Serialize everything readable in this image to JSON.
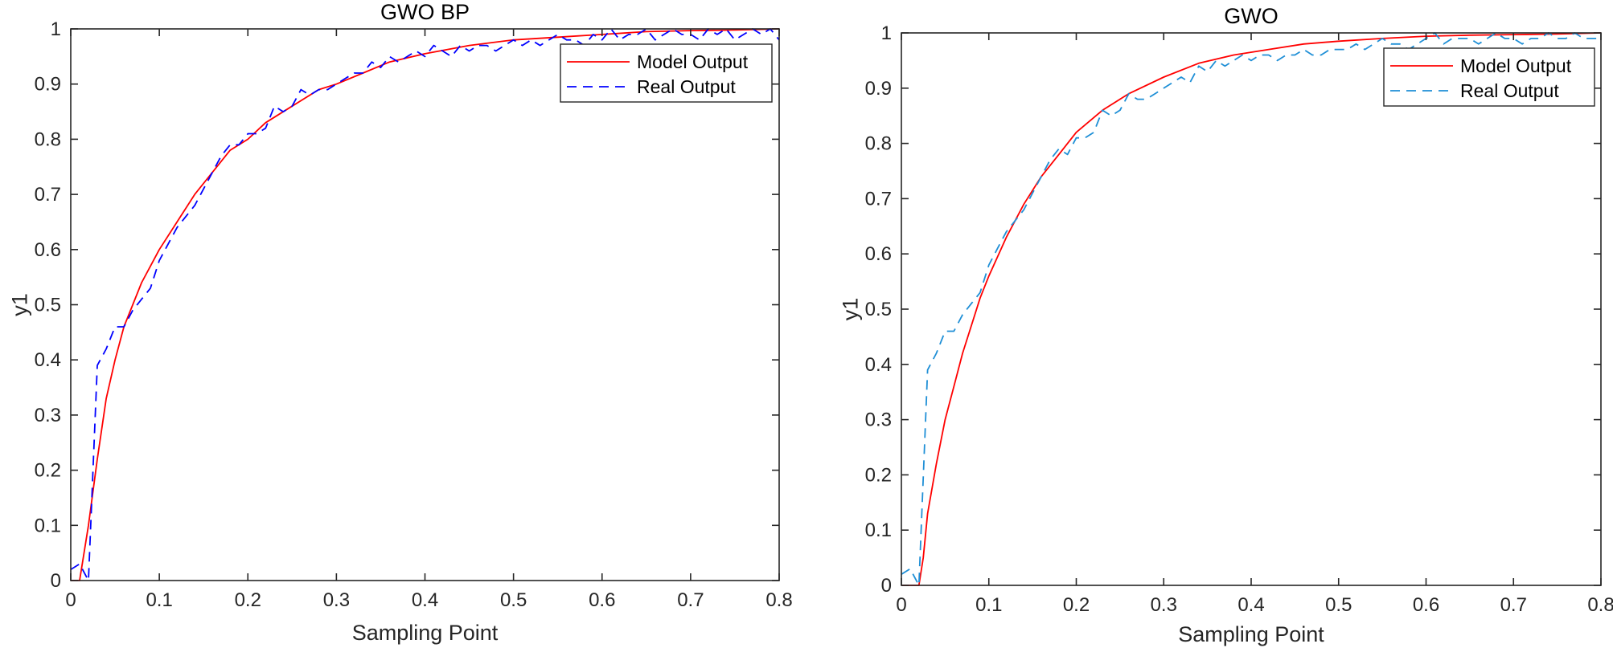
{
  "chart_data": [
    {
      "type": "line",
      "title": "GWO BP",
      "xlabel": "Sampling Point",
      "ylabel": "y1",
      "xlim": [
        0,
        0.8
      ],
      "ylim": [
        0,
        1
      ],
      "xticks": [
        0,
        0.1,
        0.2,
        0.3,
        0.4,
        0.5,
        0.6,
        0.7,
        0.8
      ],
      "xtick_labels": [
        "0",
        "0.1",
        "0.2",
        "0.3",
        "0.4",
        "0.5",
        "0.6",
        "0.7",
        "0.8"
      ],
      "yticks": [
        0,
        0.1,
        0.2,
        0.3,
        0.4,
        0.5,
        0.6,
        0.7,
        0.8,
        0.9,
        1
      ],
      "ytick_labels": [
        "0",
        "0.1",
        "0.2",
        "0.3",
        "0.4",
        "0.5",
        "0.6",
        "0.7",
        "0.8",
        "0.9",
        "1"
      ],
      "grid": false,
      "legend_position": "top-right",
      "series": [
        {
          "name": "Model Output",
          "color": "#ff0000",
          "dash": "solid",
          "x": [
            0,
            0.01,
            0.02,
            0.03,
            0.04,
            0.05,
            0.06,
            0.07,
            0.08,
            0.09,
            0.1,
            0.12,
            0.14,
            0.16,
            0.18,
            0.2,
            0.22,
            0.25,
            0.28,
            0.3,
            0.33,
            0.36,
            0.4,
            0.45,
            0.5,
            0.55,
            0.6,
            0.65,
            0.7,
            0.75,
            0.8
          ],
          "y": [
            0,
            0,
            0.1,
            0.22,
            0.33,
            0.4,
            0.46,
            0.5,
            0.54,
            0.57,
            0.6,
            0.65,
            0.7,
            0.74,
            0.78,
            0.8,
            0.83,
            0.86,
            0.89,
            0.9,
            0.92,
            0.94,
            0.955,
            0.97,
            0.98,
            0.985,
            0.99,
            0.995,
            0.997,
            0.998,
            1.0
          ]
        },
        {
          "name": "Real Output",
          "color": "#0000ff",
          "dash": "dashed",
          "x": [
            0,
            0.01,
            0.02,
            0.03,
            0.04,
            0.05,
            0.06,
            0.07,
            0.08,
            0.09,
            0.1,
            0.11,
            0.12,
            0.13,
            0.14,
            0.15,
            0.16,
            0.17,
            0.18,
            0.19,
            0.2,
            0.21,
            0.22,
            0.23,
            0.24,
            0.25,
            0.26,
            0.27,
            0.28,
            0.29,
            0.3,
            0.31,
            0.32,
            0.33,
            0.34,
            0.35,
            0.36,
            0.37,
            0.38,
            0.39,
            0.4,
            0.41,
            0.42,
            0.43,
            0.44,
            0.45,
            0.46,
            0.47,
            0.48,
            0.49,
            0.5,
            0.51,
            0.52,
            0.53,
            0.54,
            0.55,
            0.56,
            0.57,
            0.58,
            0.59,
            0.6,
            0.61,
            0.62,
            0.63,
            0.64,
            0.65,
            0.66,
            0.67,
            0.68,
            0.69,
            0.7,
            0.71,
            0.72,
            0.73,
            0.74,
            0.75,
            0.76,
            0.77,
            0.78,
            0.79,
            0.8
          ],
          "y": [
            0.02,
            0.03,
            0.0,
            0.39,
            0.42,
            0.46,
            0.46,
            0.49,
            0.51,
            0.53,
            0.58,
            0.61,
            0.64,
            0.66,
            0.68,
            0.71,
            0.74,
            0.77,
            0.79,
            0.79,
            0.81,
            0.81,
            0.82,
            0.86,
            0.85,
            0.86,
            0.89,
            0.88,
            0.89,
            0.89,
            0.9,
            0.91,
            0.92,
            0.92,
            0.94,
            0.93,
            0.95,
            0.94,
            0.95,
            0.96,
            0.95,
            0.97,
            0.96,
            0.95,
            0.97,
            0.96,
            0.97,
            0.97,
            0.96,
            0.97,
            0.98,
            0.97,
            0.98,
            0.97,
            0.98,
            0.99,
            0.98,
            0.98,
            0.97,
            0.99,
            0.98,
            1.0,
            0.98,
            0.99,
            0.99,
            1.0,
            0.98,
            0.99,
            1.0,
            0.99,
            0.99,
            0.98,
            1.0,
            0.99,
            1.0,
            0.98,
            0.99,
            1.0,
            0.99,
            1.0,
            0.98
          ]
        }
      ]
    },
    {
      "type": "line",
      "title": "GWO",
      "xlabel": "Sampling Point",
      "ylabel": "y1",
      "xlim": [
        0,
        0.8
      ],
      "ylim": [
        0,
        1
      ],
      "xticks": [
        0,
        0.1,
        0.2,
        0.3,
        0.4,
        0.5,
        0.6,
        0.7,
        0.8
      ],
      "xtick_labels": [
        "0",
        "0.1",
        "0.2",
        "0.3",
        "0.4",
        "0.5",
        "0.6",
        "0.7",
        "0.8"
      ],
      "yticks": [
        0,
        0.1,
        0.2,
        0.3,
        0.4,
        0.5,
        0.6,
        0.7,
        0.8,
        0.9,
        1
      ],
      "ytick_labels": [
        "0",
        "0.1",
        "0.2",
        "0.3",
        "0.4",
        "0.5",
        "0.6",
        "0.7",
        "0.8",
        "0.9",
        "1"
      ],
      "grid": false,
      "legend_position": "top-right",
      "series": [
        {
          "name": "Model Output",
          "color": "#ff0000",
          "dash": "solid",
          "x": [
            0,
            0.01,
            0.02,
            0.025,
            0.03,
            0.04,
            0.05,
            0.06,
            0.07,
            0.08,
            0.09,
            0.1,
            0.12,
            0.14,
            0.16,
            0.18,
            0.2,
            0.23,
            0.26,
            0.3,
            0.34,
            0.38,
            0.42,
            0.46,
            0.5,
            0.55,
            0.6,
            0.65,
            0.7,
            0.75,
            0.8
          ],
          "y": [
            0,
            0,
            0,
            0.05,
            0.13,
            0.22,
            0.3,
            0.36,
            0.42,
            0.47,
            0.52,
            0.56,
            0.63,
            0.69,
            0.74,
            0.78,
            0.82,
            0.86,
            0.89,
            0.92,
            0.945,
            0.96,
            0.97,
            0.98,
            0.985,
            0.99,
            0.994,
            0.996,
            0.997,
            0.998,
            1.0
          ]
        },
        {
          "name": "Real Output",
          "color": "#1f8fd6",
          "dash": "dashed",
          "x": [
            0,
            0.01,
            0.02,
            0.03,
            0.04,
            0.05,
            0.06,
            0.07,
            0.08,
            0.09,
            0.1,
            0.11,
            0.12,
            0.13,
            0.14,
            0.15,
            0.16,
            0.17,
            0.18,
            0.19,
            0.2,
            0.21,
            0.22,
            0.23,
            0.24,
            0.25,
            0.26,
            0.27,
            0.28,
            0.29,
            0.3,
            0.31,
            0.32,
            0.33,
            0.34,
            0.35,
            0.36,
            0.37,
            0.38,
            0.39,
            0.4,
            0.41,
            0.42,
            0.43,
            0.44,
            0.45,
            0.46,
            0.47,
            0.48,
            0.49,
            0.5,
            0.51,
            0.52,
            0.53,
            0.54,
            0.55,
            0.56,
            0.57,
            0.58,
            0.59,
            0.6,
            0.61,
            0.62,
            0.63,
            0.64,
            0.65,
            0.66,
            0.67,
            0.68,
            0.69,
            0.7,
            0.71,
            0.72,
            0.73,
            0.74,
            0.75,
            0.76,
            0.77,
            0.78,
            0.79,
            0.8
          ],
          "y": [
            0.02,
            0.03,
            0.0,
            0.39,
            0.42,
            0.46,
            0.46,
            0.49,
            0.51,
            0.53,
            0.58,
            0.61,
            0.64,
            0.66,
            0.68,
            0.71,
            0.74,
            0.77,
            0.79,
            0.78,
            0.81,
            0.81,
            0.82,
            0.86,
            0.85,
            0.86,
            0.89,
            0.88,
            0.88,
            0.89,
            0.9,
            0.91,
            0.92,
            0.91,
            0.94,
            0.93,
            0.95,
            0.94,
            0.95,
            0.96,
            0.95,
            0.96,
            0.96,
            0.95,
            0.96,
            0.96,
            0.97,
            0.96,
            0.96,
            0.97,
            0.97,
            0.97,
            0.98,
            0.97,
            0.98,
            0.99,
            0.98,
            0.98,
            0.97,
            0.98,
            0.99,
            1.0,
            0.98,
            0.99,
            0.99,
            0.99,
            0.98,
            0.99,
            1.0,
            0.99,
            0.99,
            0.98,
            0.99,
            0.99,
            1.0,
            0.99,
            0.99,
            1.0,
            0.99,
            0.99,
            0.99
          ]
        }
      ]
    }
  ]
}
